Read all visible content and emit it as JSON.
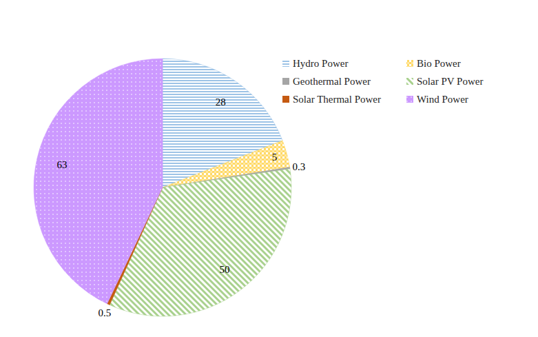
{
  "chart_data": {
    "type": "pie",
    "categories": [
      "Hydro Power",
      "Bio Power",
      "Geothermal Power",
      "Solar PV Power",
      "Solar Thermal Power",
      "Wind Power"
    ],
    "values": [
      28,
      5,
      0.3,
      50,
      0.5,
      63
    ],
    "colors": [
      "#9dc3e6",
      "#ffd966",
      "#a5a5a5",
      "#a9d18e",
      "#c55a11",
      "#cc99ff"
    ],
    "data_labels": true,
    "legend": "right"
  }
}
